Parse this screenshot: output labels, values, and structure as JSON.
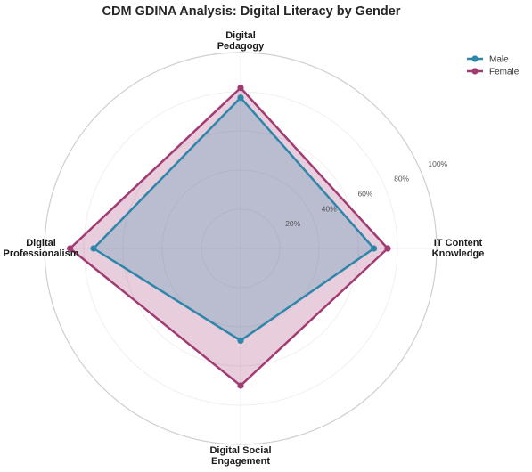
{
  "chart_data": {
    "type": "radar",
    "title": "CDM GDINA Analysis: Digital Literacy by Gender",
    "categories": [
      [
        "Digital",
        "Pedagogy"
      ],
      [
        "IT Content",
        "Knowledge"
      ],
      [
        "Digital Social",
        "Engagement"
      ],
      [
        "Digital",
        "Professionalism"
      ]
    ],
    "rlim": [
      0,
      100
    ],
    "rticks": [
      20,
      40,
      60,
      80,
      100
    ],
    "rtick_labels": [
      "20%",
      "40%",
      "60%",
      "80%",
      "100%"
    ],
    "grid": true,
    "legend_position": "top-right",
    "series": [
      {
        "name": "Male",
        "values": [
          77,
          68,
          47,
          75
        ],
        "color": "#2e86ab"
      },
      {
        "name": "Female",
        "values": [
          82,
          75,
          70,
          87
        ],
        "color": "#a23b72"
      }
    ]
  }
}
